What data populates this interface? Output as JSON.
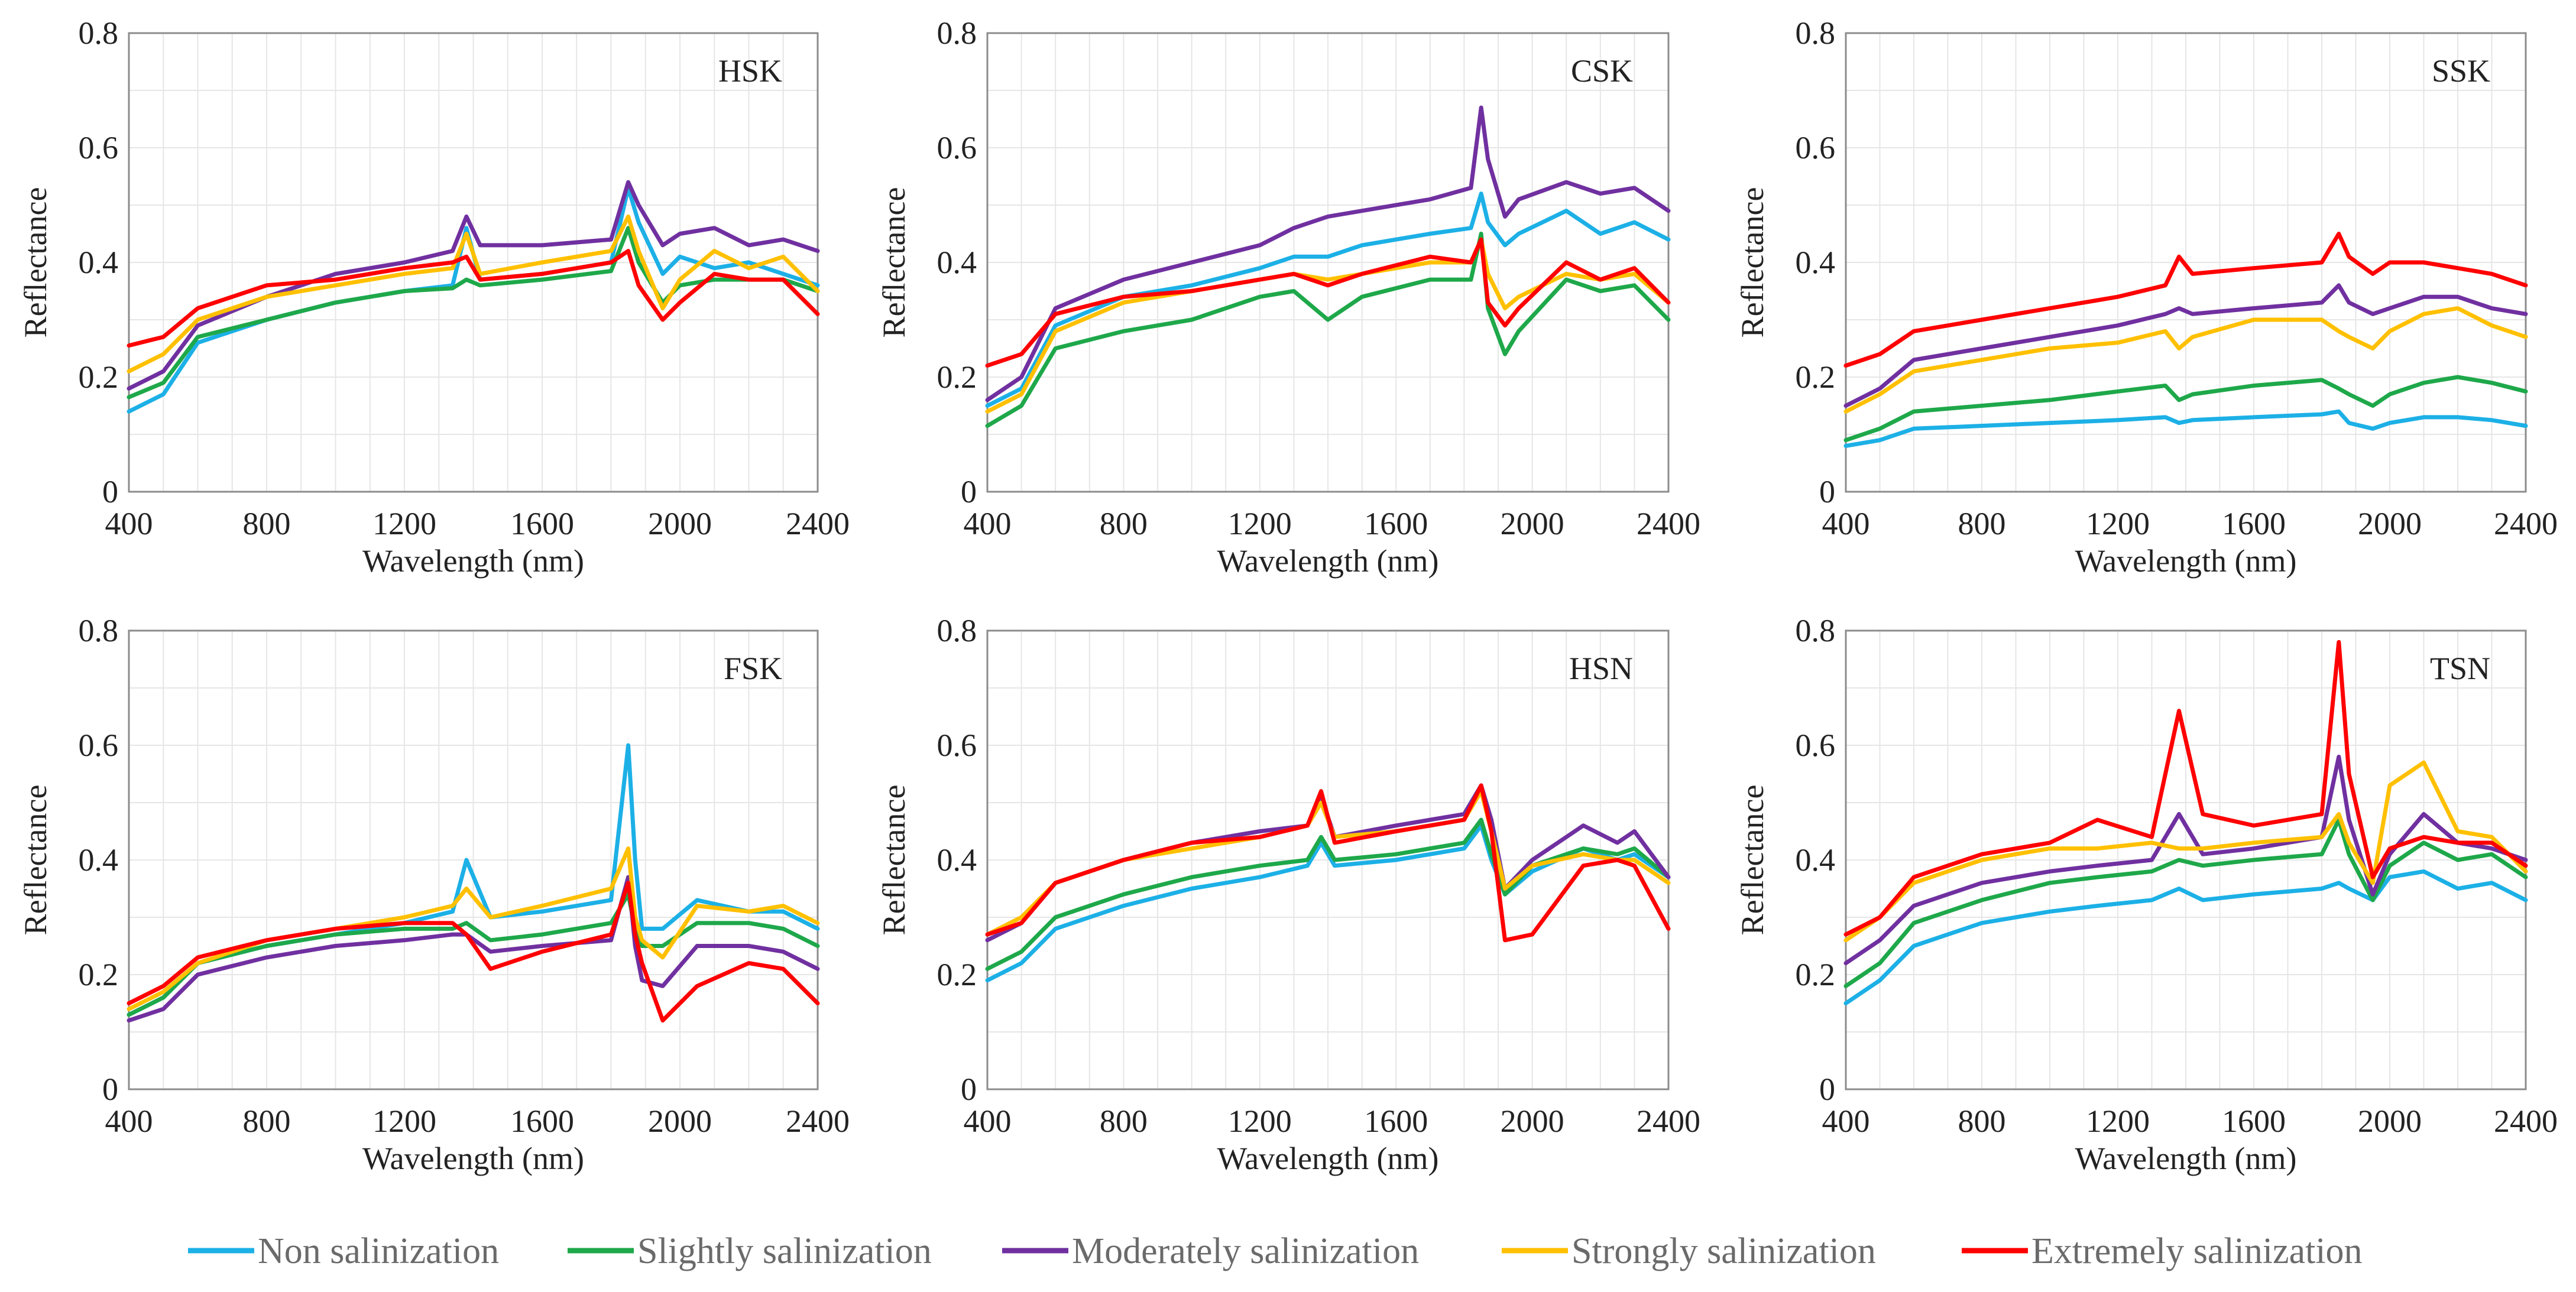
{
  "colors": {
    "non": "#1CB0E6",
    "slight": "#1EA84A",
    "moderate": "#7030A0",
    "strong": "#FFC000",
    "extreme": "#FF0000",
    "grid": "#E6E6E6",
    "axis": "#8C8C8C"
  },
  "legend": [
    {
      "key": "non",
      "label": "Non salinization"
    },
    {
      "key": "slight",
      "label": "Slightly salinization"
    },
    {
      "key": "moderate",
      "label": "Moderately salinization"
    },
    {
      "key": "strong",
      "label": "Strongly salinization"
    },
    {
      "key": "extreme",
      "label": "Extremely salinization"
    }
  ],
  "chart_data": [
    {
      "type": "line",
      "title": "HSK",
      "xlabel": "Wavelength (nm)",
      "ylabel": "Reflectance",
      "xlim": [
        400,
        2400
      ],
      "ylim": [
        0,
        0.8
      ],
      "xticks": [
        "400",
        "800",
        "1200",
        "1600",
        "2000",
        "2400"
      ],
      "yticks": [
        "0",
        "0.2",
        "0.4",
        "0.6",
        "0.8"
      ],
      "x": [
        400,
        500,
        600,
        800,
        1000,
        1200,
        1340,
        1380,
        1420,
        1600,
        1800,
        1850,
        1880,
        1950,
        2000,
        2100,
        2200,
        2300,
        2400
      ],
      "series": [
        {
          "name": "Non salinization",
          "key": "non",
          "values": [
            0.14,
            0.17,
            0.26,
            0.3,
            0.33,
            0.35,
            0.36,
            0.46,
            0.37,
            0.38,
            0.4,
            0.53,
            0.47,
            0.38,
            0.41,
            0.39,
            0.4,
            0.38,
            0.36
          ]
        },
        {
          "name": "Slightly salinization",
          "key": "slight",
          "values": [
            0.165,
            0.19,
            0.27,
            0.3,
            0.33,
            0.35,
            0.355,
            0.37,
            0.36,
            0.37,
            0.385,
            0.46,
            0.4,
            0.33,
            0.36,
            0.37,
            0.37,
            0.37,
            0.35
          ]
        },
        {
          "name": "Moderately salinization",
          "key": "moderate",
          "values": [
            0.18,
            0.21,
            0.29,
            0.34,
            0.38,
            0.4,
            0.42,
            0.48,
            0.43,
            0.43,
            0.44,
            0.54,
            0.5,
            0.43,
            0.45,
            0.46,
            0.43,
            0.44,
            0.42
          ]
        },
        {
          "name": "Strongly salinization",
          "key": "strong",
          "values": [
            0.21,
            0.24,
            0.3,
            0.34,
            0.36,
            0.38,
            0.39,
            0.45,
            0.38,
            0.4,
            0.42,
            0.48,
            0.42,
            0.32,
            0.37,
            0.42,
            0.39,
            0.41,
            0.35
          ]
        },
        {
          "name": "Extremely salinization",
          "key": "extreme",
          "values": [
            0.255,
            0.27,
            0.32,
            0.36,
            0.37,
            0.39,
            0.4,
            0.41,
            0.37,
            0.38,
            0.4,
            0.42,
            0.36,
            0.3,
            0.33,
            0.38,
            0.37,
            0.37,
            0.31
          ]
        }
      ]
    },
    {
      "type": "line",
      "title": "CSK",
      "xlabel": "Wavelength (nm)",
      "ylabel": "Reflectance",
      "xlim": [
        400,
        2400
      ],
      "ylim": [
        0,
        0.8
      ],
      "xticks": [
        "400",
        "800",
        "1200",
        "1600",
        "2000",
        "2400"
      ],
      "yticks": [
        "0",
        "0.2",
        "0.4",
        "0.6",
        "0.8"
      ],
      "x": [
        400,
        500,
        600,
        800,
        1000,
        1200,
        1300,
        1400,
        1500,
        1700,
        1820,
        1850,
        1870,
        1920,
        1960,
        2100,
        2200,
        2300,
        2400
      ],
      "series": [
        {
          "name": "Non salinization",
          "key": "non",
          "values": [
            0.15,
            0.18,
            0.29,
            0.34,
            0.36,
            0.39,
            0.41,
            0.41,
            0.43,
            0.45,
            0.46,
            0.52,
            0.47,
            0.43,
            0.45,
            0.49,
            0.45,
            0.47,
            0.44
          ]
        },
        {
          "name": "Slightly salinization",
          "key": "slight",
          "values": [
            0.115,
            0.15,
            0.25,
            0.28,
            0.3,
            0.34,
            0.35,
            0.3,
            0.34,
            0.37,
            0.37,
            0.45,
            0.32,
            0.24,
            0.28,
            0.37,
            0.35,
            0.36,
            0.3
          ]
        },
        {
          "name": "Moderately salinization",
          "key": "moderate",
          "values": [
            0.16,
            0.2,
            0.32,
            0.37,
            0.4,
            0.43,
            0.46,
            0.48,
            0.49,
            0.51,
            0.53,
            0.67,
            0.58,
            0.48,
            0.51,
            0.54,
            0.52,
            0.53,
            0.49
          ]
        },
        {
          "name": "Strongly salinization",
          "key": "strong",
          "values": [
            0.14,
            0.17,
            0.28,
            0.33,
            0.35,
            0.37,
            0.38,
            0.37,
            0.38,
            0.4,
            0.4,
            0.44,
            0.38,
            0.32,
            0.34,
            0.38,
            0.37,
            0.38,
            0.33
          ]
        },
        {
          "name": "Extremely salinization",
          "key": "extreme",
          "values": [
            0.22,
            0.24,
            0.31,
            0.34,
            0.35,
            0.37,
            0.38,
            0.36,
            0.38,
            0.41,
            0.4,
            0.44,
            0.33,
            0.29,
            0.32,
            0.4,
            0.37,
            0.39,
            0.33
          ]
        }
      ]
    },
    {
      "type": "line",
      "title": "SSK",
      "xlabel": "Wavelength (nm)",
      "ylabel": "Reflectance",
      "xlim": [
        400,
        2400
      ],
      "ylim": [
        0,
        0.8
      ],
      "xticks": [
        "400",
        "800",
        "1200",
        "1600",
        "2000",
        "2400"
      ],
      "yticks": [
        "0",
        "0.2",
        "0.4",
        "0.6",
        "0.8"
      ],
      "x": [
        400,
        500,
        600,
        800,
        1000,
        1200,
        1340,
        1380,
        1420,
        1600,
        1800,
        1850,
        1880,
        1950,
        2000,
        2100,
        2200,
        2300,
        2400
      ],
      "series": [
        {
          "name": "Non salinization",
          "key": "non",
          "values": [
            0.08,
            0.09,
            0.11,
            0.115,
            0.12,
            0.125,
            0.13,
            0.12,
            0.125,
            0.13,
            0.135,
            0.14,
            0.12,
            0.11,
            0.12,
            0.13,
            0.13,
            0.125,
            0.115
          ]
        },
        {
          "name": "Slightly salinization",
          "key": "slight",
          "values": [
            0.09,
            0.11,
            0.14,
            0.15,
            0.16,
            0.175,
            0.185,
            0.16,
            0.17,
            0.185,
            0.195,
            0.18,
            0.17,
            0.15,
            0.17,
            0.19,
            0.2,
            0.19,
            0.175
          ]
        },
        {
          "name": "Moderately salinization",
          "key": "moderate",
          "values": [
            0.15,
            0.18,
            0.23,
            0.25,
            0.27,
            0.29,
            0.31,
            0.32,
            0.31,
            0.32,
            0.33,
            0.36,
            0.33,
            0.31,
            0.32,
            0.34,
            0.34,
            0.32,
            0.31
          ]
        },
        {
          "name": "Strongly salinization",
          "key": "strong",
          "values": [
            0.14,
            0.17,
            0.21,
            0.23,
            0.25,
            0.26,
            0.28,
            0.25,
            0.27,
            0.3,
            0.3,
            0.28,
            0.27,
            0.25,
            0.28,
            0.31,
            0.32,
            0.29,
            0.27
          ]
        },
        {
          "name": "Extremely salinization",
          "key": "extreme",
          "values": [
            0.22,
            0.24,
            0.28,
            0.3,
            0.32,
            0.34,
            0.36,
            0.41,
            0.38,
            0.39,
            0.4,
            0.45,
            0.41,
            0.38,
            0.4,
            0.4,
            0.39,
            0.38,
            0.36
          ]
        }
      ]
    },
    {
      "type": "line",
      "title": "FSK",
      "xlabel": "Wavelength (nm)",
      "ylabel": "Reflectance",
      "xlim": [
        400,
        2400
      ],
      "ylim": [
        0,
        0.8
      ],
      "xticks": [
        "400",
        "800",
        "1200",
        "1600",
        "2000",
        "2400"
      ],
      "yticks": [
        "0",
        "0.2",
        "0.4",
        "0.6",
        "0.8"
      ],
      "x": [
        400,
        500,
        600,
        800,
        1000,
        1200,
        1340,
        1380,
        1450,
        1600,
        1800,
        1850,
        1870,
        1890,
        1950,
        2050,
        2200,
        2300,
        2400
      ],
      "series": [
        {
          "name": "Non salinization",
          "key": "non",
          "values": [
            0.13,
            0.16,
            0.22,
            0.25,
            0.27,
            0.29,
            0.31,
            0.4,
            0.3,
            0.31,
            0.33,
            0.6,
            0.4,
            0.28,
            0.28,
            0.33,
            0.31,
            0.31,
            0.28
          ]
        },
        {
          "name": "Slightly salinization",
          "key": "slight",
          "values": [
            0.13,
            0.16,
            0.22,
            0.25,
            0.27,
            0.28,
            0.28,
            0.29,
            0.26,
            0.27,
            0.29,
            0.34,
            0.28,
            0.25,
            0.25,
            0.29,
            0.29,
            0.28,
            0.25
          ]
        },
        {
          "name": "Moderately salinization",
          "key": "moderate",
          "values": [
            0.12,
            0.14,
            0.2,
            0.23,
            0.25,
            0.26,
            0.27,
            0.27,
            0.24,
            0.25,
            0.26,
            0.37,
            0.25,
            0.19,
            0.18,
            0.25,
            0.25,
            0.24,
            0.21
          ]
        },
        {
          "name": "Strongly salinization",
          "key": "strong",
          "values": [
            0.14,
            0.17,
            0.22,
            0.26,
            0.28,
            0.3,
            0.32,
            0.35,
            0.3,
            0.32,
            0.35,
            0.42,
            0.3,
            0.26,
            0.23,
            0.32,
            0.31,
            0.32,
            0.29
          ]
        },
        {
          "name": "Extremely salinization",
          "key": "extreme",
          "values": [
            0.15,
            0.18,
            0.23,
            0.26,
            0.28,
            0.29,
            0.29,
            0.27,
            0.21,
            0.24,
            0.27,
            0.36,
            0.27,
            0.22,
            0.12,
            0.18,
            0.22,
            0.21,
            0.15
          ]
        }
      ]
    },
    {
      "type": "line",
      "title": "HSN",
      "xlabel": "Wavelength (nm)",
      "ylabel": "Reflectance",
      "xlim": [
        400,
        2400
      ],
      "ylim": [
        0,
        0.8
      ],
      "xticks": [
        "400",
        "800",
        "1200",
        "1600",
        "2000",
        "2400"
      ],
      "yticks": [
        "0",
        "0.2",
        "0.4",
        "0.6",
        "0.8"
      ],
      "x": [
        400,
        500,
        600,
        800,
        1000,
        1200,
        1340,
        1380,
        1420,
        1600,
        1800,
        1850,
        1880,
        1920,
        2000,
        2150,
        2250,
        2300,
        2400
      ],
      "series": [
        {
          "name": "Non salinization",
          "key": "non",
          "values": [
            0.19,
            0.22,
            0.28,
            0.32,
            0.35,
            0.37,
            0.39,
            0.43,
            0.39,
            0.4,
            0.42,
            0.46,
            0.4,
            0.34,
            0.38,
            0.42,
            0.4,
            0.41,
            0.37
          ]
        },
        {
          "name": "Slightly salinization",
          "key": "slight",
          "values": [
            0.21,
            0.24,
            0.3,
            0.34,
            0.37,
            0.39,
            0.4,
            0.44,
            0.4,
            0.41,
            0.43,
            0.47,
            0.41,
            0.34,
            0.39,
            0.42,
            0.41,
            0.42,
            0.37
          ]
        },
        {
          "name": "Moderately salinization",
          "key": "moderate",
          "values": [
            0.26,
            0.29,
            0.36,
            0.4,
            0.43,
            0.45,
            0.46,
            0.51,
            0.44,
            0.46,
            0.48,
            0.53,
            0.47,
            0.35,
            0.4,
            0.46,
            0.43,
            0.45,
            0.37
          ]
        },
        {
          "name": "Strongly salinization",
          "key": "strong",
          "values": [
            0.27,
            0.3,
            0.36,
            0.4,
            0.42,
            0.44,
            0.46,
            0.5,
            0.44,
            0.45,
            0.47,
            0.52,
            0.45,
            0.35,
            0.39,
            0.41,
            0.4,
            0.4,
            0.36
          ]
        },
        {
          "name": "Extremely salinization",
          "key": "extreme",
          "values": [
            0.27,
            0.29,
            0.36,
            0.4,
            0.43,
            0.44,
            0.46,
            0.52,
            0.43,
            0.45,
            0.47,
            0.53,
            0.45,
            0.26,
            0.27,
            0.39,
            0.4,
            0.39,
            0.28
          ]
        }
      ]
    },
    {
      "type": "line",
      "title": "TSN",
      "xlabel": "Wavelength (nm)",
      "ylabel": "Reflectance",
      "xlim": [
        400,
        2400
      ],
      "ylim": [
        0,
        0.8
      ],
      "xticks": [
        "400",
        "800",
        "1200",
        "1600",
        "2000",
        "2400"
      ],
      "yticks": [
        "0",
        "0.2",
        "0.4",
        "0.6",
        "0.8"
      ],
      "x": [
        400,
        500,
        600,
        800,
        1000,
        1140,
        1300,
        1380,
        1450,
        1600,
        1800,
        1850,
        1880,
        1950,
        2000,
        2100,
        2200,
        2300,
        2400
      ],
      "series": [
        {
          "name": "Non salinization",
          "key": "non",
          "values": [
            0.15,
            0.19,
            0.25,
            0.29,
            0.31,
            0.32,
            0.33,
            0.35,
            0.33,
            0.34,
            0.35,
            0.36,
            0.35,
            0.33,
            0.37,
            0.38,
            0.35,
            0.36,
            0.33
          ]
        },
        {
          "name": "Slightly salinization",
          "key": "slight",
          "values": [
            0.18,
            0.22,
            0.29,
            0.33,
            0.36,
            0.37,
            0.38,
            0.4,
            0.39,
            0.4,
            0.41,
            0.47,
            0.41,
            0.33,
            0.39,
            0.43,
            0.4,
            0.41,
            0.37
          ]
        },
        {
          "name": "Moderately salinization",
          "key": "moderate",
          "values": [
            0.22,
            0.26,
            0.32,
            0.36,
            0.38,
            0.39,
            0.4,
            0.48,
            0.41,
            0.42,
            0.44,
            0.58,
            0.47,
            0.34,
            0.41,
            0.48,
            0.43,
            0.42,
            0.4
          ]
        },
        {
          "name": "Strongly salinization",
          "key": "strong",
          "values": [
            0.26,
            0.3,
            0.36,
            0.4,
            0.42,
            0.42,
            0.43,
            0.42,
            0.42,
            0.43,
            0.44,
            0.48,
            0.43,
            0.36,
            0.53,
            0.57,
            0.45,
            0.44,
            0.38
          ]
        },
        {
          "name": "Extremely salinization",
          "key": "extreme",
          "values": [
            0.27,
            0.3,
            0.37,
            0.41,
            0.43,
            0.47,
            0.44,
            0.66,
            0.48,
            0.46,
            0.48,
            0.78,
            0.55,
            0.37,
            0.42,
            0.44,
            0.43,
            0.43,
            0.39
          ]
        }
      ]
    }
  ]
}
